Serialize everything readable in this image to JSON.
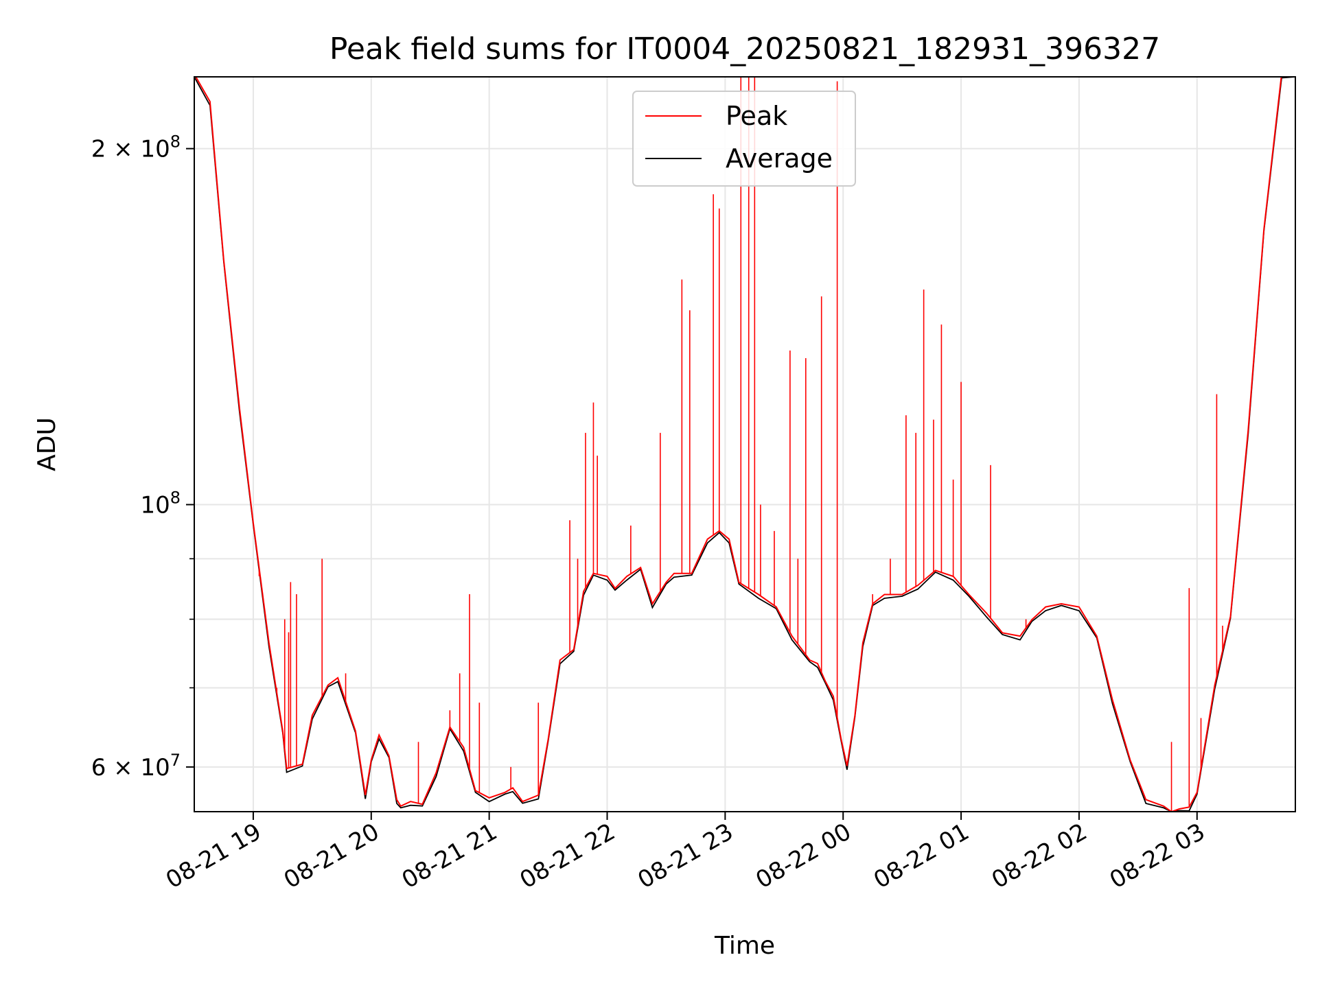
{
  "chart_data": {
    "type": "line",
    "title": "Peak field sums for IT0004_20250821_182931_396327",
    "xlabel": "Time",
    "ylabel": "ADU",
    "yscale": "log",
    "ylim": [
      55000000,
      230000000
    ],
    "xlim": [
      "2025-08-21 18:30",
      "2025-08-22 03:50"
    ],
    "grid": true,
    "legend_position": "top-center",
    "x_ticks": [
      "2025-08-21 19:00",
      "2025-08-21 20:00",
      "2025-08-21 21:00",
      "2025-08-21 22:00",
      "2025-08-21 23:00",
      "2025-08-22 00:00",
      "2025-08-22 01:00",
      "2025-08-22 02:00",
      "2025-08-22 03:00"
    ],
    "x_tick_labels": [
      "08-21 19",
      "08-21 20",
      "08-21 21",
      "08-21 22",
      "08-21 23",
      "08-22 00",
      "08-22 01",
      "08-22 02",
      "08-22 03"
    ],
    "y_ticks": [
      60000000,
      100000000,
      200000000
    ],
    "y_tick_labels": [
      {
        "mantissa": "6",
        "exp": "7",
        "text": "6 × 10⁷"
      },
      {
        "mantissa": "",
        "exp": "8",
        "text": "10⁸"
      },
      {
        "mantissa": "2",
        "exp": "8",
        "text": "2 × 10⁸"
      }
    ],
    "series": [
      {
        "name": "Average",
        "color": "#000000",
        "points": [
          [
            "2025-08-21 18:30",
            230000000
          ],
          [
            "2025-08-21 18:38",
            218000000
          ],
          [
            "2025-08-21 18:45",
            160000000
          ],
          [
            "2025-08-21 18:53",
            120000000
          ],
          [
            "2025-08-21 19:00",
            96000000
          ],
          [
            "2025-08-21 19:08",
            76000000
          ],
          [
            "2025-08-21 19:15",
            64000000
          ],
          [
            "2025-08-21 19:17",
            59500000
          ],
          [
            "2025-08-21 19:25",
            60000000
          ],
          [
            "2025-08-21 19:30",
            66000000
          ],
          [
            "2025-08-21 19:38",
            70000000
          ],
          [
            "2025-08-21 19:43",
            71000000
          ],
          [
            "2025-08-21 19:52",
            64000000
          ],
          [
            "2025-08-21 19:57",
            56500000
          ],
          [
            "2025-08-21 20:00",
            60500000
          ],
          [
            "2025-08-21 20:04",
            63500000
          ],
          [
            "2025-08-21 20:09",
            61000000
          ],
          [
            "2025-08-21 20:13",
            56000000
          ],
          [
            "2025-08-21 20:15",
            55300000
          ],
          [
            "2025-08-21 20:20",
            55800000
          ],
          [
            "2025-08-21 20:26",
            55500000
          ],
          [
            "2025-08-21 20:33",
            59000000
          ],
          [
            "2025-08-21 20:40",
            64500000
          ],
          [
            "2025-08-21 20:47",
            62000000
          ],
          [
            "2025-08-21 20:53",
            57000000
          ],
          [
            "2025-08-21 21:00",
            56200000
          ],
          [
            "2025-08-21 21:08",
            56800000
          ],
          [
            "2025-08-21 21:12",
            57300000
          ],
          [
            "2025-08-21 21:17",
            55800000
          ],
          [
            "2025-08-21 21:25",
            56500000
          ],
          [
            "2025-08-21 21:30",
            63000000
          ],
          [
            "2025-08-21 21:36",
            73500000
          ],
          [
            "2025-08-21 21:43",
            75000000
          ],
          [
            "2025-08-21 21:48",
            84000000
          ],
          [
            "2025-08-21 21:53",
            87000000
          ],
          [
            "2025-08-21 22:00",
            86500000
          ],
          [
            "2025-08-21 22:04",
            84500000
          ],
          [
            "2025-08-21 22:10",
            86500000
          ],
          [
            "2025-08-21 22:17",
            88000000
          ],
          [
            "2025-08-21 22:23",
            82000000
          ],
          [
            "2025-08-21 22:30",
            85500000
          ],
          [
            "2025-08-21 22:34",
            87000000
          ],
          [
            "2025-08-21 22:43",
            87000000
          ],
          [
            "2025-08-21 22:51",
            93000000
          ],
          [
            "2025-08-21 22:57",
            94500000
          ],
          [
            "2025-08-21 23:02",
            93000000
          ],
          [
            "2025-08-21 23:07",
            85500000
          ],
          [
            "2025-08-21 23:17",
            83500000
          ],
          [
            "2025-08-21 23:26",
            81500000
          ],
          [
            "2025-08-21 23:34",
            77000000
          ],
          [
            "2025-08-21 23:43",
            73500000
          ],
          [
            "2025-08-21 23:47",
            73000000
          ],
          [
            "2025-08-21 23:51",
            70500000
          ],
          [
            "2025-08-21 23:55",
            68500000
          ],
          [
            "2025-08-21 23:59",
            63000000
          ],
          [
            "2025-08-22 00:02",
            59800000
          ],
          [
            "2025-08-22 00:06",
            66000000
          ],
          [
            "2025-08-22 00:10",
            76000000
          ],
          [
            "2025-08-22 00:15",
            82000000
          ],
          [
            "2025-08-22 00:21",
            83500000
          ],
          [
            "2025-08-22 00:30",
            83500000
          ],
          [
            "2025-08-22 00:38",
            85000000
          ],
          [
            "2025-08-22 00:47",
            87500000
          ],
          [
            "2025-08-22 00:56",
            86500000
          ],
          [
            "2025-08-22 01:04",
            83500000
          ],
          [
            "2025-08-22 01:13",
            80500000
          ],
          [
            "2025-08-22 01:21",
            77500000
          ],
          [
            "2025-08-22 01:30",
            77000000
          ],
          [
            "2025-08-22 01:36",
            79500000
          ],
          [
            "2025-08-22 01:43",
            81500000
          ],
          [
            "2025-08-22 01:51",
            82000000
          ],
          [
            "2025-08-22 02:00",
            81500000
          ],
          [
            "2025-08-22 02:09",
            77000000
          ],
          [
            "2025-08-22 02:17",
            68000000
          ],
          [
            "2025-08-22 02:26",
            60500000
          ],
          [
            "2025-08-22 02:34",
            56000000
          ],
          [
            "2025-08-22 02:43",
            55300000
          ],
          [
            "2025-08-22 02:47",
            54700000
          ],
          [
            "2025-08-22 02:51",
            55000000
          ],
          [
            "2025-08-22 02:56",
            55200000
          ],
          [
            "2025-08-22 03:00",
            56800000
          ],
          [
            "2025-08-22 03:09",
            70000000
          ],
          [
            "2025-08-22 03:17",
            80000000
          ],
          [
            "2025-08-22 03:26",
            115000000
          ],
          [
            "2025-08-22 03:34",
            170000000
          ],
          [
            "2025-08-22 03:43",
            230000000
          ],
          [
            "2025-08-22 03:50",
            230000000
          ]
        ]
      },
      {
        "name": "Peak",
        "color": "#ff0000",
        "spikes": [
          [
            "2025-08-21 19:03",
            87000000
          ],
          [
            "2025-08-21 19:12",
            70000000
          ],
          [
            "2025-08-21 19:16",
            80000000
          ],
          [
            "2025-08-21 19:18",
            78000000
          ],
          [
            "2025-08-21 19:19",
            86000000
          ],
          [
            "2025-08-21 19:22",
            84000000
          ],
          [
            "2025-08-21 19:35",
            90000000
          ],
          [
            "2025-08-21 19:47",
            72000000
          ],
          [
            "2025-08-21 20:24",
            63000000
          ],
          [
            "2025-08-21 20:40",
            67000000
          ],
          [
            "2025-08-21 20:45",
            72000000
          ],
          [
            "2025-08-21 20:50",
            84000000
          ],
          [
            "2025-08-21 20:55",
            68000000
          ],
          [
            "2025-08-21 21:11",
            60000000
          ],
          [
            "2025-08-21 21:25",
            68000000
          ],
          [
            "2025-08-21 21:41",
            97000000
          ],
          [
            "2025-08-21 21:45",
            90000000
          ],
          [
            "2025-08-21 21:49",
            115000000
          ],
          [
            "2025-08-21 21:53",
            122000000
          ],
          [
            "2025-08-21 21:55",
            110000000
          ],
          [
            "2025-08-21 22:12",
            96000000
          ],
          [
            "2025-08-21 22:27",
            115000000
          ],
          [
            "2025-08-21 22:38",
            155000000
          ],
          [
            "2025-08-21 22:42",
            146000000
          ],
          [
            "2025-08-21 22:54",
            183000000
          ],
          [
            "2025-08-21 22:57",
            178000000
          ],
          [
            "2025-08-21 23:08",
            230000000
          ],
          [
            "2025-08-21 23:12",
            230000000
          ],
          [
            "2025-08-21 23:15",
            230000000
          ],
          [
            "2025-08-21 23:18",
            100000000
          ],
          [
            "2025-08-21 23:25",
            95000000
          ],
          [
            "2025-08-21 23:33",
            135000000
          ],
          [
            "2025-08-21 23:37",
            90000000
          ],
          [
            "2025-08-21 23:41",
            133000000
          ],
          [
            "2025-08-21 23:49",
            150000000
          ],
          [
            "2025-08-21 23:57",
            228000000
          ],
          [
            "2025-08-22 00:15",
            84000000
          ],
          [
            "2025-08-22 00:24",
            90000000
          ],
          [
            "2025-08-22 00:32",
            119000000
          ],
          [
            "2025-08-22 00:37",
            115000000
          ],
          [
            "2025-08-22 00:41",
            152000000
          ],
          [
            "2025-08-22 00:46",
            118000000
          ],
          [
            "2025-08-22 00:50",
            142000000
          ],
          [
            "2025-08-22 00:56",
            105000000
          ],
          [
            "2025-08-22 01:00",
            127000000
          ],
          [
            "2025-08-22 01:15",
            108000000
          ],
          [
            "2025-08-22 01:33",
            80000000
          ],
          [
            "2025-08-22 02:47",
            63000000
          ],
          [
            "2025-08-22 02:56",
            85000000
          ],
          [
            "2025-08-22 03:02",
            66000000
          ],
          [
            "2025-08-22 03:10",
            124000000
          ],
          [
            "2025-08-22 03:13",
            79000000
          ]
        ]
      }
    ]
  }
}
